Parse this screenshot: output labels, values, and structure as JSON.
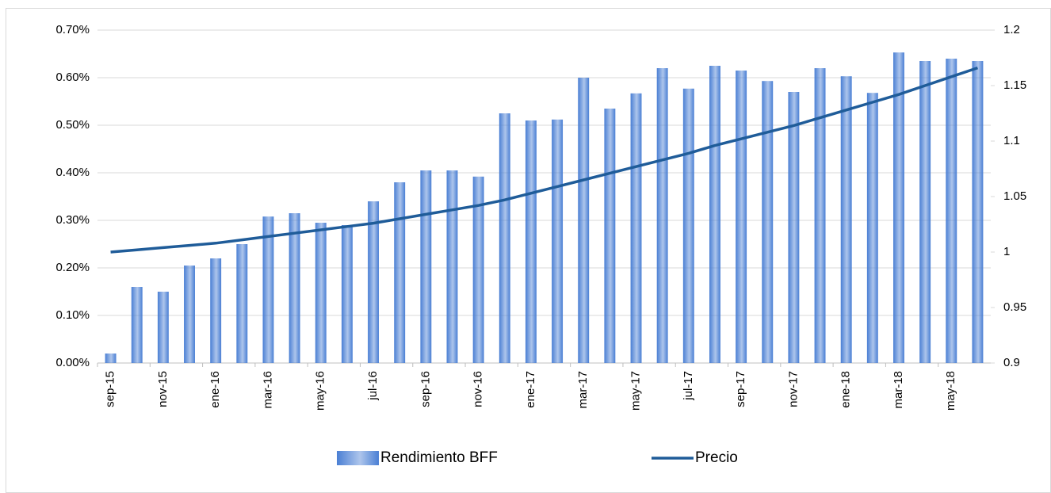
{
  "chart_data": {
    "type": "bar-line",
    "categories": [
      "sep-15",
      null,
      "nov-15",
      null,
      "ene-16",
      null,
      "mar-16",
      null,
      "may-16",
      null,
      "jul-16",
      null,
      "sep-16",
      null,
      "nov-16",
      null,
      "ene-17",
      null,
      "mar-17",
      null,
      "may-17",
      null,
      "jul-17",
      null,
      "sep-17",
      null,
      "nov-17",
      null,
      "ene-18",
      null,
      "mar-18",
      null,
      "may-18",
      null
    ],
    "series": [
      {
        "name": "Rendimiento BFF",
        "type": "bar",
        "color": "#4a7fd4",
        "values": [
          0.02,
          0.16,
          0.15,
          0.205,
          0.22,
          0.25,
          0.308,
          0.315,
          0.295,
          0.29,
          0.34,
          0.38,
          0.405,
          0.405,
          0.392,
          0.525,
          0.51,
          0.512,
          0.6,
          0.535,
          0.567,
          0.62,
          0.577,
          0.625,
          0.615,
          0.593,
          0.57,
          0.62,
          0.603,
          0.568,
          0.653,
          0.635,
          0.64,
          0.635
        ]
      },
      {
        "name": "Precio",
        "type": "line",
        "axis": "y2",
        "color": "#1f5c99",
        "values": [
          1.0,
          1.002,
          1.004,
          1.006,
          1.008,
          1.011,
          1.014,
          1.017,
          1.02,
          1.023,
          1.026,
          1.03,
          1.034,
          1.038,
          1.042,
          1.047,
          1.053,
          1.059,
          1.065,
          1.071,
          1.077,
          1.083,
          1.089,
          1.096,
          1.102,
          1.108,
          1.114,
          1.121,
          1.128,
          1.135,
          1.142,
          1.15,
          1.158,
          1.166
        ]
      }
    ],
    "ylim": [
      0,
      0.7
    ],
    "yticks": [
      {
        "value": 0,
        "label": "0.00%"
      },
      {
        "value": 0.1,
        "label": "0.10%"
      },
      {
        "value": 0.2,
        "label": "0.20%"
      },
      {
        "value": 0.3,
        "label": "0.30%"
      },
      {
        "value": 0.4,
        "label": "0.40%"
      },
      {
        "value": 0.5,
        "label": "0.50%"
      },
      {
        "value": 0.6,
        "label": "0.60%"
      },
      {
        "value": 0.7,
        "label": "0.70%"
      }
    ],
    "y2lim": [
      0.9,
      1.2
    ],
    "y2ticks": [
      0.9,
      0.95,
      1,
      1.05,
      1.1,
      1.15,
      1.2
    ],
    "grid": true,
    "legend": "bottom"
  }
}
